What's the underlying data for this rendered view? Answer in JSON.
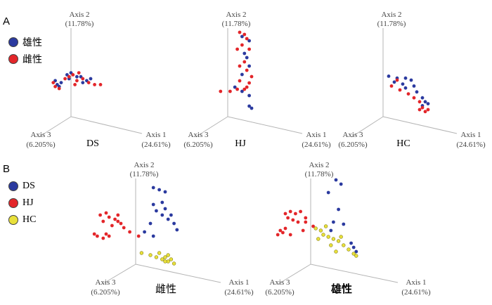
{
  "panels": {
    "a": "A",
    "b": "B"
  },
  "legends": {
    "a": [
      {
        "label": "雄性",
        "color": "#2b3a9f"
      },
      {
        "label": "雌性",
        "color": "#e3262a"
      }
    ],
    "b": [
      {
        "label": "DS",
        "color": "#2b3a9f"
      },
      {
        "label": "HJ",
        "color": "#e3262a"
      },
      {
        "label": "HC",
        "color": "#e8e03a"
      }
    ]
  },
  "chart_data": [
    {
      "type": "scatter",
      "title": "DS",
      "axes": [
        {
          "name": "Axis 1",
          "variance": "(24.61%)"
        },
        {
          "name": "Axis 2",
          "variance": "(11.78%)"
        },
        {
          "name": "Axis 3",
          "variance": "(6.205%)"
        }
      ],
      "series": [
        {
          "name": "雄性",
          "color": "#2b3a9f",
          "points": [
            [
              -0.8,
              0.4
            ],
            [
              -0.7,
              0.2
            ],
            [
              -0.6,
              0.1
            ],
            [
              -0.2,
              0.7
            ],
            [
              0.0,
              0.8
            ],
            [
              0.3,
              0.6
            ],
            [
              0.5,
              0.6
            ],
            [
              0.8,
              0.4
            ],
            [
              1.0,
              0.5
            ],
            [
              -0.5,
              0.3
            ],
            [
              0.6,
              0.3
            ],
            [
              -0.1,
              0.5
            ]
          ]
        },
        {
          "name": "雌性",
          "color": "#e3262a",
          "points": [
            [
              -0.9,
              0.3
            ],
            [
              -0.8,
              0.1
            ],
            [
              -0.6,
              0.0
            ],
            [
              -0.1,
              0.6
            ],
            [
              0.1,
              0.7
            ],
            [
              0.3,
              0.4
            ],
            [
              0.4,
              0.8
            ],
            [
              0.6,
              0.5
            ],
            [
              0.9,
              0.3
            ],
            [
              1.2,
              0.2
            ],
            [
              1.5,
              0.2
            ],
            [
              -0.3,
              0.5
            ],
            [
              0.2,
              0.2
            ]
          ]
        }
      ]
    },
    {
      "type": "scatter",
      "title": "HJ",
      "axes": [
        {
          "name": "Axis 1",
          "variance": "(24.61%)"
        },
        {
          "name": "Axis 2",
          "variance": "(11.78%)"
        },
        {
          "name": "Axis 3",
          "variance": "(6.205%)"
        }
      ],
      "series": [
        {
          "name": "雄性",
          "color": "#2b3a9f",
          "points": [
            [
              0.6,
              3.4
            ],
            [
              0.9,
              3.2
            ],
            [
              0.7,
              2.6
            ],
            [
              0.8,
              2.4
            ],
            [
              0.9,
              2.0
            ],
            [
              0.6,
              1.6
            ],
            [
              0.3,
              1.0
            ],
            [
              0.6,
              0.8
            ],
            [
              0.9,
              0.6
            ],
            [
              0.9,
              0.1
            ],
            [
              1.0,
              0.0
            ]
          ]
        },
        {
          "name": "雌性",
          "color": "#e3262a",
          "points": [
            [
              0.5,
              3.6
            ],
            [
              0.7,
              3.5
            ],
            [
              0.8,
              3.3
            ],
            [
              0.6,
              3.0
            ],
            [
              0.4,
              2.8
            ],
            [
              0.9,
              2.8
            ],
            [
              0.7,
              2.2
            ],
            [
              0.5,
              2.0
            ],
            [
              0.8,
              1.8
            ],
            [
              1.0,
              1.5
            ],
            [
              0.9,
              1.2
            ],
            [
              0.5,
              1.3
            ],
            [
              0.4,
              0.9
            ],
            [
              0.1,
              0.8
            ],
            [
              -0.3,
              0.8
            ],
            [
              0.7,
              0.9
            ],
            [
              0.8,
              1.0
            ]
          ]
        }
      ]
    },
    {
      "type": "scatter",
      "title": "HC",
      "axes": [
        {
          "name": "Axis 1",
          "variance": "(24.61%)"
        },
        {
          "name": "Axis 2",
          "variance": "(11.78%)"
        },
        {
          "name": "Axis 3",
          "variance": "(6.205%)"
        }
      ],
      "series": [
        {
          "name": "雄性",
          "color": "#2b3a9f",
          "points": [
            [
              0.2,
              1.7
            ],
            [
              0.5,
              1.6
            ],
            [
              0.8,
              1.6
            ],
            [
              0.4,
              1.4
            ],
            [
              0.7,
              1.3
            ],
            [
              1.0,
              1.5
            ],
            [
              0.8,
              1.1
            ],
            [
              1.1,
              1.2
            ],
            [
              1.2,
              0.9
            ],
            [
              1.4,
              0.6
            ],
            [
              1.5,
              0.4
            ],
            [
              1.4,
              0.2
            ],
            [
              1.6,
              0.3
            ]
          ]
        },
        {
          "name": "雌性",
          "color": "#e3262a",
          "points": [
            [
              0.3,
              1.2
            ],
            [
              0.6,
              1.0
            ],
            [
              0.9,
              0.8
            ],
            [
              1.1,
              0.6
            ],
            [
              1.3,
              0.4
            ],
            [
              1.4,
              0.1
            ],
            [
              1.5,
              -0.1
            ],
            [
              1.6,
              0.0
            ],
            [
              1.3,
              0.0
            ],
            [
              0.5,
              1.5
            ]
          ]
        }
      ]
    },
    {
      "type": "scatter",
      "title": "雌性",
      "axes": [
        {
          "name": "Axis 1",
          "variance": "(24.61%)"
        },
        {
          "name": "Axis 2",
          "variance": "(11.78%)"
        },
        {
          "name": "Axis 3",
          "variance": "(6.205%)"
        }
      ],
      "series": [
        {
          "name": "DS",
          "color": "#2b3a9f",
          "points": [
            [
              0.6,
              3.3
            ],
            [
              0.8,
              3.2
            ],
            [
              1.0,
              3.1
            ],
            [
              0.6,
              2.5
            ],
            [
              0.9,
              2.6
            ],
            [
              1.0,
              2.3
            ],
            [
              0.7,
              2.2
            ],
            [
              0.9,
              2.0
            ],
            [
              1.2,
              2.0
            ],
            [
              1.1,
              1.8
            ],
            [
              1.3,
              1.6
            ],
            [
              0.5,
              1.6
            ],
            [
              1.4,
              1.3
            ],
            [
              0.3,
              1.2
            ],
            [
              0.6,
              1.0
            ]
          ]
        },
        {
          "name": "HJ",
          "color": "#e3262a",
          "points": [
            [
              -1.2,
              2.0
            ],
            [
              -1.0,
              2.1
            ],
            [
              -0.9,
              1.9
            ],
            [
              -0.7,
              1.8
            ],
            [
              -0.6,
              2.0
            ],
            [
              -1.1,
              1.7
            ],
            [
              -0.8,
              1.5
            ],
            [
              -0.5,
              1.6
            ],
            [
              -0.4,
              1.4
            ],
            [
              -1.3,
              1.0
            ],
            [
              -1.1,
              0.9
            ],
            [
              -1.0,
              1.1
            ],
            [
              -0.9,
              1.0
            ],
            [
              -0.2,
              1.2
            ],
            [
              0.1,
              1.0
            ],
            [
              -1.4,
              1.1
            ],
            [
              -0.6,
              1.7
            ]
          ]
        },
        {
          "name": "HC",
          "color": "#e8e03a",
          "points": [
            [
              0.2,
              0.2
            ],
            [
              0.5,
              0.1
            ],
            [
              0.8,
              0.2
            ],
            [
              0.9,
              -0.1
            ],
            [
              1.0,
              0.0
            ],
            [
              1.1,
              -0.2
            ],
            [
              1.2,
              -0.1
            ],
            [
              1.0,
              -0.2
            ],
            [
              1.3,
              -0.3
            ],
            [
              1.1,
              0.1
            ],
            [
              0.7,
              0.0
            ]
          ]
        }
      ]
    },
    {
      "type": "scatter",
      "title": "雄性",
      "axes": [
        {
          "name": "Axis 1",
          "variance": "(24.61%)"
        },
        {
          "name": "Axis 2",
          "variance": "(11.78%)"
        },
        {
          "name": "Axis 3",
          "variance": "(6.205%)"
        }
      ],
      "series": [
        {
          "name": "DS",
          "color": "#2b3a9f",
          "points": [
            [
              1.0,
              3.6
            ],
            [
              1.2,
              3.4
            ],
            [
              0.7,
              3.0
            ],
            [
              1.1,
              2.2
            ],
            [
              0.9,
              1.6
            ],
            [
              1.3,
              1.5
            ],
            [
              0.8,
              1.2
            ],
            [
              1.6,
              0.6
            ],
            [
              1.7,
              0.4
            ],
            [
              1.8,
              0.2
            ]
          ]
        },
        {
          "name": "HJ",
          "color": "#e3262a",
          "points": [
            [
              -1.0,
              2.0
            ],
            [
              -0.8,
              2.1
            ],
            [
              -0.6,
              2.0
            ],
            [
              -0.4,
              2.1
            ],
            [
              -0.9,
              1.8
            ],
            [
              -0.7,
              1.7
            ],
            [
              -0.5,
              1.6
            ],
            [
              -1.2,
              1.2
            ],
            [
              -1.1,
              1.1
            ],
            [
              -1.0,
              1.3
            ],
            [
              -0.2,
              1.6
            ],
            [
              0.1,
              1.4
            ],
            [
              -0.3,
              1.2
            ],
            [
              -0.8,
              1.0
            ],
            [
              -0.2,
              1.8
            ],
            [
              -1.3,
              1.0
            ]
          ]
        },
        {
          "name": "HC",
          "color": "#e8e03a",
          "points": [
            [
              0.2,
              1.3
            ],
            [
              0.4,
              1.2
            ],
            [
              0.6,
              1.4
            ],
            [
              0.5,
              1.0
            ],
            [
              0.7,
              0.9
            ],
            [
              0.9,
              0.8
            ],
            [
              1.1,
              0.7
            ],
            [
              1.3,
              0.5
            ],
            [
              1.5,
              0.3
            ],
            [
              1.7,
              0.1
            ],
            [
              1.8,
              0.0
            ],
            [
              0.3,
              0.8
            ],
            [
              0.8,
              0.5
            ],
            [
              1.0,
              0.2
            ],
            [
              1.2,
              0.9
            ]
          ]
        }
      ]
    }
  ]
}
